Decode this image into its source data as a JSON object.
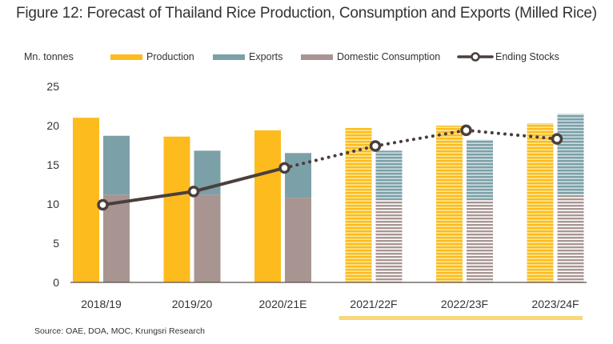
{
  "figure": {
    "title": "Figure 12: Forecast of Thailand Rice Production, Consumption and Exports (Milled Rice)",
    "source": "Source: OAE, DOA, MOC, Krungsri Research"
  },
  "colors": {
    "production": "#FDBB1E",
    "production_light": "#FCE89A",
    "exports": "#7BA0A8",
    "exports_light": "#CFDDE0",
    "consumption": "#A89592",
    "consumption_light": "#FFFFFF",
    "ending_stocks": "#4A3F3D",
    "forecast_bar": "#F9D77A"
  },
  "chart_data": {
    "type": "bar",
    "title": "Figure 12: Forecast of Thailand Rice Production, Consumption and Exports (Milled Rice)",
    "ylabel": "Mn. tonnes",
    "xlabel": "",
    "ylim": [
      0,
      25
    ],
    "yticks": [
      0,
      5,
      10,
      15,
      20,
      25
    ],
    "grid": false,
    "legend_position": "top",
    "categories": [
      "2018/19",
      "2019/20",
      "2020/21E",
      "2021/22F",
      "2022/23F",
      "2023/24F"
    ],
    "forecast_categories": [
      "2021/22F",
      "2022/23F",
      "2023/24F"
    ],
    "series": [
      {
        "name": "Production",
        "kind": "bar",
        "values": [
          21.0,
          18.6,
          19.4,
          19.7,
          20.0,
          20.3
        ]
      },
      {
        "name": "Exports",
        "kind": "stacked-bar-top",
        "values": [
          7.5,
          5.6,
          5.7,
          6.3,
          7.7,
          10.3
        ]
      },
      {
        "name": "Domestic Consumption",
        "kind": "stacked-bar-bottom",
        "values": [
          11.2,
          11.2,
          10.8,
          10.5,
          10.5,
          11.2
        ]
      },
      {
        "name": "Ending Stocks",
        "kind": "line",
        "values": [
          9.9,
          11.6,
          14.6,
          17.4,
          19.4,
          18.3
        ]
      }
    ]
  }
}
